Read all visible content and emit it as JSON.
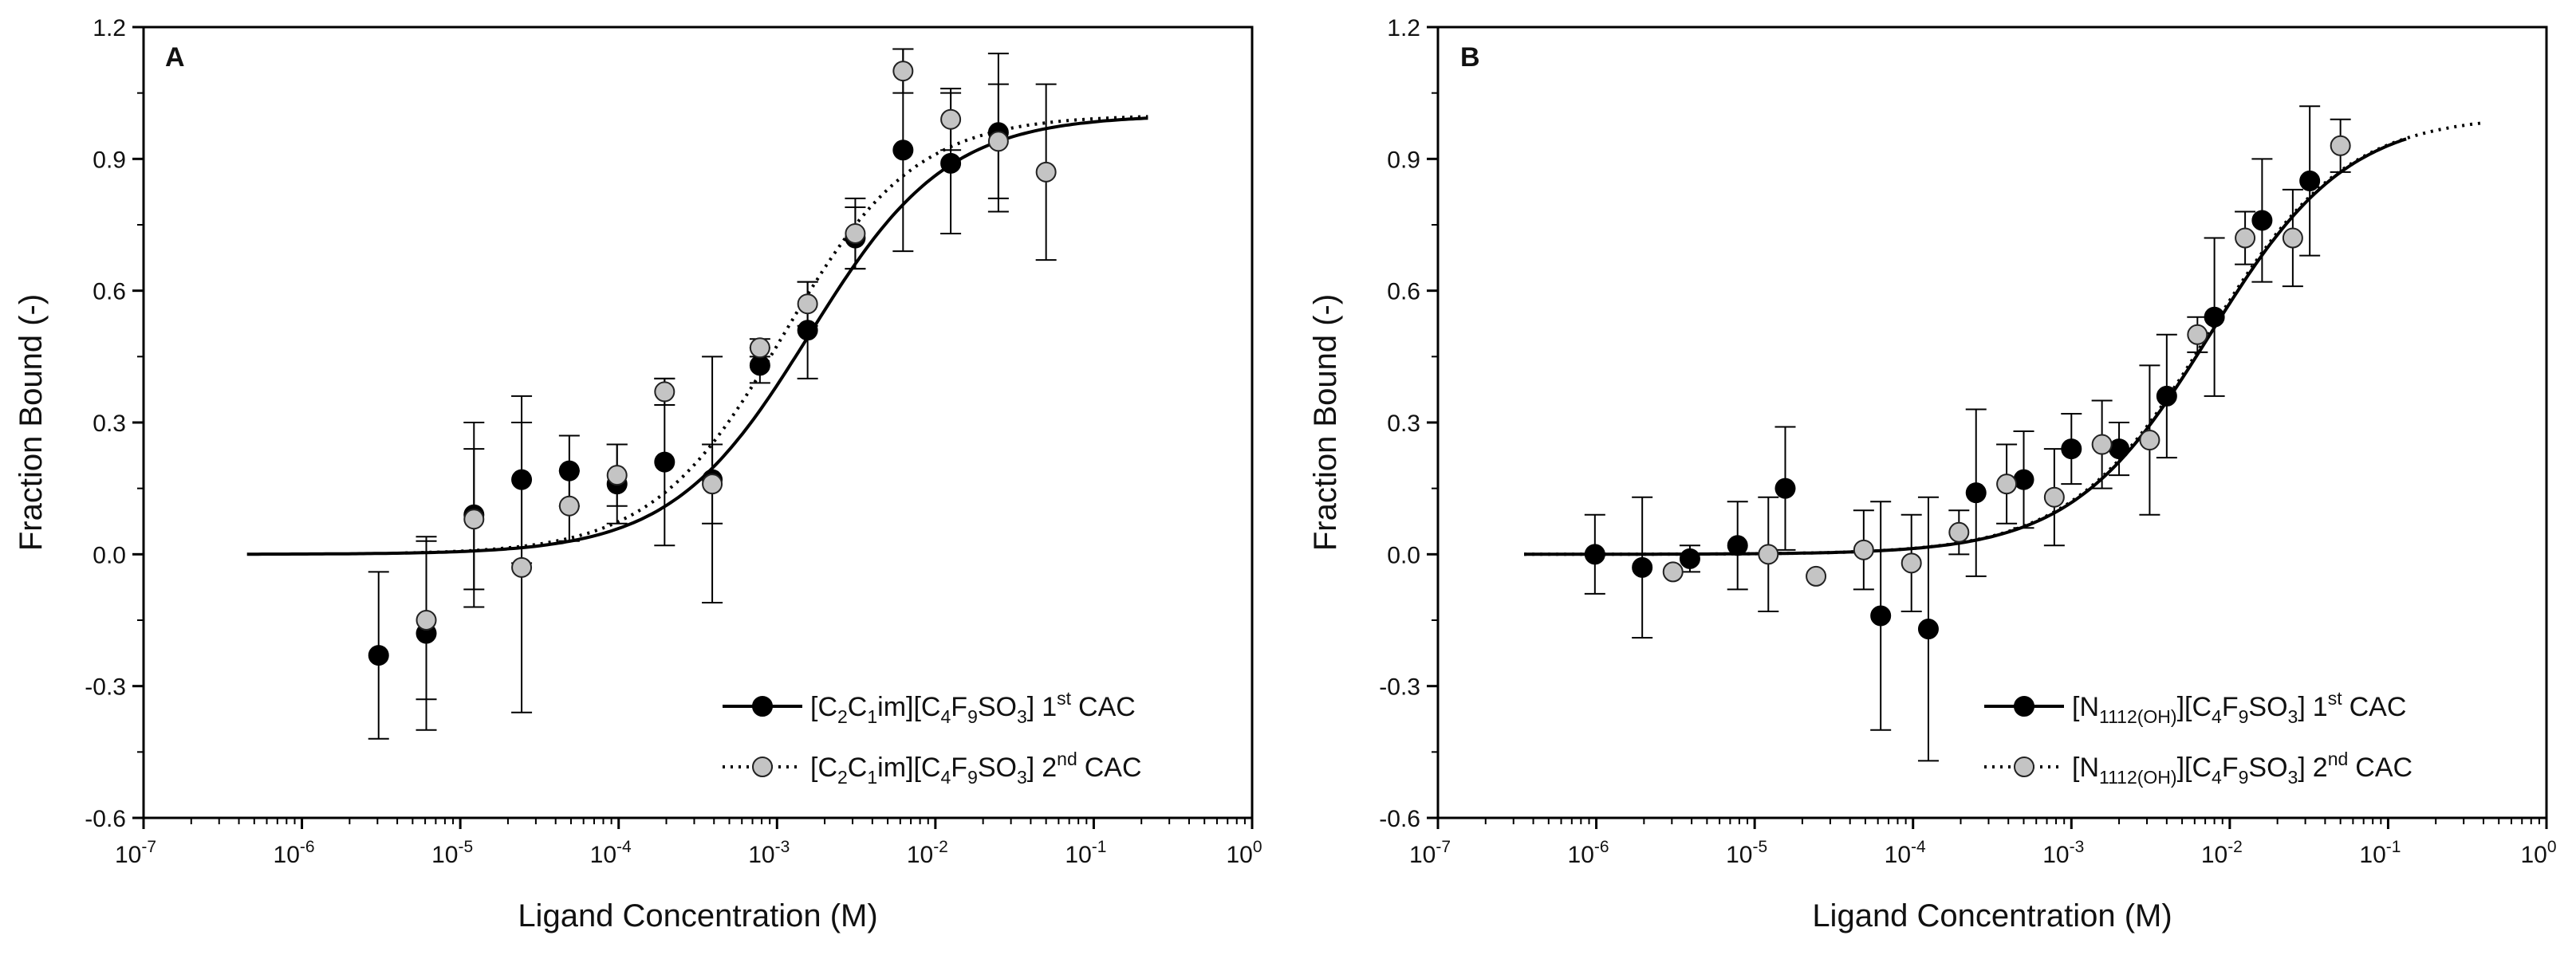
{
  "chart_data": [
    {
      "type": "scatter",
      "panel_label": "A",
      "xlabel": "Ligand Concentration (M)",
      "ylabel": "Fraction Bound (-)",
      "xscale": "log",
      "xlim": [
        1e-07,
        1
      ],
      "ylim": [
        -0.6,
        1.2
      ],
      "x_ticks": [
        {
          "exp": "-7",
          "value": 1e-07
        },
        {
          "exp": "-6",
          "value": 1e-06
        },
        {
          "exp": "-5",
          "value": 1e-05
        },
        {
          "exp": "-4",
          "value": 0.0001
        },
        {
          "exp": "-3",
          "value": 0.001
        },
        {
          "exp": "-2",
          "value": 0.01
        },
        {
          "exp": "-1",
          "value": 0.1
        },
        {
          "exp": "0",
          "value": 1
        }
      ],
      "y_ticks": [
        "-0.6",
        "-0.3",
        "0.0",
        "0.3",
        "0.6",
        "0.9",
        "1.2"
      ],
      "legend_position": "bottom-right",
      "series": [
        {
          "name": "1st CAC",
          "cation_base": "[C",
          "cation_sub1": "2",
          "cation_mid": "C",
          "cation_sub2": "1",
          "cation_end": "im]",
          "anion_a": "[C",
          "anion_sub1": "4",
          "anion_b": "F",
          "anion_sub2": "9",
          "anion_c": "SO",
          "anion_sub3": "3",
          "anion_d": "]",
          "ordinal": "1",
          "ordinal_sup": "st",
          "suffix": "CAC",
          "marker_color": "#000000",
          "line_style": "solid",
          "fit": {
            "bottom": 0.0,
            "top": 1.0,
            "ec50": 0.0016,
            "hill": 1.0,
            "xmin": 4.5e-07,
            "xmax": 0.22
          },
          "x": [
            3.05e-06,
            6.1e-06,
            1.22e-05,
            2.44e-05,
            4.88e-05,
            9.77e-05,
            0.000195,
            0.00039,
            0.00078,
            0.00156,
            0.00312,
            0.00625,
            0.0125,
            0.025
          ],
          "y": [
            -0.23,
            -0.18,
            0.09,
            0.17,
            0.19,
            0.16,
            0.21,
            0.17,
            0.43,
            0.51,
            0.72,
            0.92,
            0.89,
            0.96
          ],
          "err": [
            0.19,
            0.22,
            0.21,
            0.19,
            0.08,
            0.09,
            0.19,
            0.28,
            0.04,
            0.11,
            0.07,
            0.23,
            0.16,
            0.18
          ]
        },
        {
          "name": "2nd CAC",
          "cation_base": "[C",
          "cation_sub1": "2",
          "cation_mid": "C",
          "cation_sub2": "1",
          "cation_end": "im]",
          "anion_a": "[C",
          "anion_sub1": "4",
          "anion_b": "F",
          "anion_sub2": "9",
          "anion_c": "SO",
          "anion_sub3": "3",
          "anion_d": "]",
          "ordinal": "2",
          "ordinal_sup": "nd",
          "suffix": "CAC",
          "marker_color": "#c4c4c4",
          "line_style": "dotted",
          "fit": {
            "bottom": 0.0,
            "top": 1.0,
            "ec50": 0.0011,
            "hill": 1.05,
            "xmin": 4.5e-06,
            "xmax": 0.22
          },
          "x": [
            6.1e-06,
            1.22e-05,
            2.44e-05,
            4.88e-05,
            9.77e-05,
            0.000195,
            0.00039,
            0.00078,
            0.00156,
            0.00312,
            0.00625,
            0.0125,
            0.025,
            0.05
          ],
          "y": [
            -0.15,
            0.08,
            -0.03,
            0.11,
            0.18,
            0.37,
            0.16,
            0.47,
            0.57,
            0.73,
            1.1,
            0.99,
            0.94,
            0.87
          ],
          "err": [
            0.18,
            0.16,
            0.33,
            0.08,
            0.07,
            0.03,
            0.09,
            0.02,
            0.05,
            0.08,
            0.05,
            0.07,
            0.13,
            0.2
          ]
        }
      ]
    },
    {
      "type": "scatter",
      "panel_label": "B",
      "xlabel": "Ligand Concentration (M)",
      "ylabel": "Fraction Bound (-)",
      "xscale": "log",
      "xlim": [
        1e-07,
        1
      ],
      "ylim": [
        -0.6,
        1.2
      ],
      "x_ticks": [
        {
          "exp": "-7",
          "value": 1e-07
        },
        {
          "exp": "-6",
          "value": 1e-06
        },
        {
          "exp": "-5",
          "value": 1e-05
        },
        {
          "exp": "-4",
          "value": 0.0001
        },
        {
          "exp": "-3",
          "value": 0.001
        },
        {
          "exp": "-2",
          "value": 0.01
        },
        {
          "exp": "-1",
          "value": 0.1
        },
        {
          "exp": "0",
          "value": 1
        }
      ],
      "y_ticks": [
        "-0.6",
        "-0.3",
        "0.0",
        "0.3",
        "0.6",
        "0.9",
        "1.2"
      ],
      "legend_position": "bottom-right",
      "series": [
        {
          "name": "1st CAC",
          "cation_base": "[N",
          "cation_sub1": "1112(OH)",
          "cation_mid": "",
          "cation_sub2": "",
          "cation_end": "]",
          "anion_a": "[C",
          "anion_sub1": "4",
          "anion_b": "F",
          "anion_sub2": "9",
          "anion_c": "SO",
          "anion_sub3": "3",
          "anion_d": "]",
          "ordinal": "1",
          "ordinal_sup": "st",
          "suffix": "CAC",
          "marker_color": "#000000",
          "line_style": "solid",
          "fit": {
            "bottom": 0.0,
            "top": 1.0,
            "ec50": 0.0075,
            "hill": 1.0,
            "xmin": 3.5e-07,
            "xmax": 0.13
          },
          "x": [
            9.8e-07,
            1.95e-06,
            3.9e-06,
            7.8e-06,
            1.56e-05,
            6.25e-05,
            0.000125,
            0.00025,
            0.0005,
            0.001,
            0.002,
            0.004,
            0.008,
            0.016,
            0.032
          ],
          "y": [
            0.0,
            -0.03,
            -0.01,
            0.02,
            0.15,
            -0.14,
            -0.17,
            0.14,
            0.17,
            0.24,
            0.24,
            0.36,
            0.54,
            0.76,
            0.85
          ],
          "err": [
            0.09,
            0.16,
            0.03,
            0.1,
            0.14,
            0.26,
            0.3,
            0.19,
            0.11,
            0.08,
            0.06,
            0.14,
            0.18,
            0.14,
            0.17
          ]
        },
        {
          "name": "2nd CAC",
          "cation_base": "[N",
          "cation_sub1": "1112(OH)",
          "cation_mid": "",
          "cation_sub2": "",
          "cation_end": "]",
          "anion_a": "[C",
          "anion_sub1": "4",
          "anion_b": "F",
          "anion_sub2": "9",
          "anion_c": "SO",
          "anion_sub3": "3",
          "anion_d": "]",
          "ordinal": "2",
          "ordinal_sup": "nd",
          "suffix": "CAC",
          "marker_color": "#c4c4c4",
          "line_style": "dotted",
          "fit": {
            "bottom": 0.0,
            "top": 1.0,
            "ec50": 0.0073,
            "hill": 1.0,
            "xmin": 3.5e-07,
            "xmax": 0.4
          },
          "x": [
            3.05e-06,
            1.22e-05,
            2.44e-05,
            4.88e-05,
            9.77e-05,
            0.000195,
            0.00039,
            0.00078,
            0.00156,
            0.00312,
            0.00625,
            0.0125,
            0.025,
            0.05
          ],
          "y": [
            -0.04,
            0.0,
            -0.05,
            0.01,
            -0.02,
            0.05,
            0.16,
            0.13,
            0.25,
            0.26,
            0.5,
            0.72,
            0.72,
            0.93
          ],
          "err": [
            0.0,
            0.13,
            0.0,
            0.09,
            0.11,
            0.05,
            0.09,
            0.11,
            0.1,
            0.17,
            0.04,
            0.06,
            0.11,
            0.06
          ]
        }
      ]
    }
  ]
}
